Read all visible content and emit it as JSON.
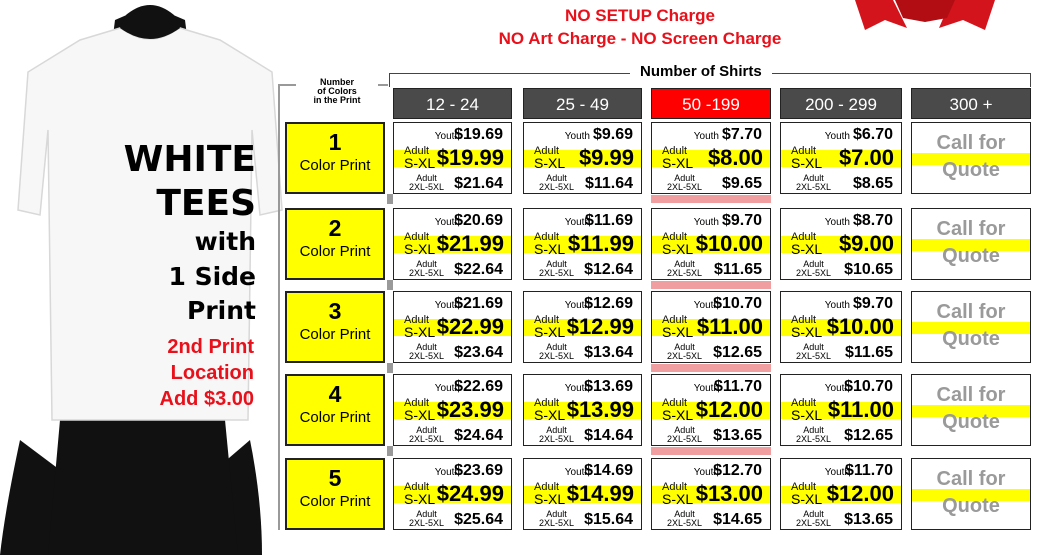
{
  "banner": {
    "line1": "NO SETUP Charge",
    "line2": "NO Art Charge  -  NO Screen Charge"
  },
  "shirt": {
    "title_lines": [
      "WHITE",
      "TEES",
      "with",
      "1 Side",
      "Print"
    ],
    "note_lines": [
      "2nd Print",
      "Location",
      "Add $3.00"
    ]
  },
  "grid": {
    "corner_label_lines": [
      "Number",
      "of Colors",
      "in the Print"
    ],
    "header_title": "Number of Shirts",
    "ranges": [
      "12 - 24",
      "25 - 49",
      "50 -199",
      "200 - 299",
      "300 +"
    ],
    "youth_label": "Youth",
    "adult_label": "Adult",
    "sxl_label": "S-XL",
    "xl_label": "2XL-5XL",
    "quote_lines": [
      "Call for",
      "Quote"
    ],
    "rows": [
      {
        "number": "1",
        "label": "Color Print",
        "cells": [
          {
            "youth": "$19.69",
            "adult": "$19.99",
            "plus": "$21.64"
          },
          {
            "youth": "$9.69",
            "adult": "$9.99",
            "plus": "$11.64"
          },
          {
            "youth": "$7.70",
            "adult": "$8.00",
            "plus": "$9.65"
          },
          {
            "youth": "$6.70",
            "adult": "$7.00",
            "plus": "$8.65"
          }
        ]
      },
      {
        "number": "2",
        "label": "Color Print",
        "cells": [
          {
            "youth": "$20.69",
            "adult": "$21.99",
            "plus": "$22.64"
          },
          {
            "youth": "$11.69",
            "adult": "$11.99",
            "plus": "$12.64"
          },
          {
            "youth": "$9.70",
            "adult": "$10.00",
            "plus": "$11.65"
          },
          {
            "youth": "$8.70",
            "adult": "$9.00",
            "plus": "$10.65"
          }
        ]
      },
      {
        "number": "3",
        "label": "Color Print",
        "cells": [
          {
            "youth": "$21.69",
            "adult": "$22.99",
            "plus": "$23.64"
          },
          {
            "youth": "$12.69",
            "adult": "$12.99",
            "plus": "$13.64"
          },
          {
            "youth": "$10.70",
            "adult": "$11.00",
            "plus": "$12.65"
          },
          {
            "youth": "$9.70",
            "adult": "$10.00",
            "plus": "$11.65"
          }
        ]
      },
      {
        "number": "4",
        "label": "Color Print",
        "cells": [
          {
            "youth": "$22.69",
            "adult": "$23.99",
            "plus": "$24.64"
          },
          {
            "youth": "$13.69",
            "adult": "$13.99",
            "plus": "$14.64"
          },
          {
            "youth": "$11.70",
            "adult": "$12.00",
            "plus": "$13.65"
          },
          {
            "youth": "$10.70",
            "adult": "$11.00",
            "plus": "$12.65"
          }
        ]
      },
      {
        "number": "5",
        "label": "Color Print",
        "cells": [
          {
            "youth": "$23.69",
            "adult": "$24.99",
            "plus": "$25.64"
          },
          {
            "youth": "$14.69",
            "adult": "$14.99",
            "plus": "$15.64"
          },
          {
            "youth": "$12.70",
            "adult": "$13.00",
            "plus": "$14.65"
          },
          {
            "youth": "$11.70",
            "adult": "$12.00",
            "plus": "$13.65"
          }
        ]
      }
    ]
  },
  "colors": {
    "accent_red": "#e8101a",
    "highlight_yellow": "#ffff00",
    "header_dark": "#4a4a4a",
    "header_red": "#ff0000",
    "quote_gray": "#9a9a9a"
  }
}
